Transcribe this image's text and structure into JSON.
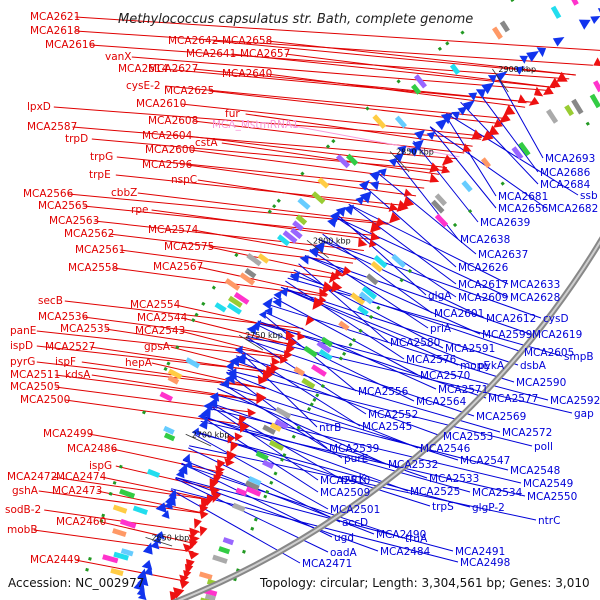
{
  "title": "Methylococcus capsulatus str. Bath, complete genome",
  "footer": {
    "accession": "Accession: NC_002977",
    "summary": "Topology: circular; Length: 3,304,561 bp; Genes: 3,010"
  },
  "colors": {
    "forward_label": "#e00000",
    "reverse_label": "#0000d8",
    "rna_label": "#f79ad9",
    "backbone": "#888888",
    "forward_arrow": "#ee1111",
    "reverse_arrow": "#1133ee"
  },
  "ticks": [
    {
      "label": "2900 kbp"
    },
    {
      "label": "2850 kbp"
    },
    {
      "label": "2800 kbp"
    },
    {
      "label": "2750 kbp"
    },
    {
      "label": "2700 kbp"
    },
    {
      "label": "2650 kbp"
    }
  ],
  "left_labels": [
    {
      "text": "MCA2621",
      "kind": "fwd"
    },
    {
      "text": "MCA2618",
      "kind": "fwd"
    },
    {
      "text": "MCA2616",
      "kind": "fwd"
    },
    {
      "text": "vanX",
      "kind": "fwd"
    },
    {
      "text": "MCA2614",
      "kind": "fwd"
    },
    {
      "text": "cysE-2",
      "kind": "fwd"
    },
    {
      "text": "MCA2642",
      "kind": "fwd"
    },
    {
      "text": "MCA2658",
      "kind": "fwd"
    },
    {
      "text": "MCA2641",
      "kind": "fwd"
    },
    {
      "text": "MCA2657",
      "kind": "fwd"
    },
    {
      "text": "MCA2627",
      "kind": "fwd"
    },
    {
      "text": "MCA2640",
      "kind": "fwd"
    },
    {
      "text": "MCA2625",
      "kind": "fwd"
    },
    {
      "text": "MCA2610",
      "kind": "fwd"
    },
    {
      "text": "fur",
      "kind": "fwd"
    },
    {
      "text": "lpxD",
      "kind": "fwd"
    },
    {
      "text": "MCA2608",
      "kind": "fwd"
    },
    {
      "text": "MCA_MstmRNA1",
      "kind": "rna"
    },
    {
      "text": "MCA2587",
      "kind": "fwd"
    },
    {
      "text": "MCA2604",
      "kind": "fwd"
    },
    {
      "text": "cstA",
      "kind": "fwd"
    },
    {
      "text": "trpD",
      "kind": "fwd"
    },
    {
      "text": "MCA2600",
      "kind": "fwd"
    },
    {
      "text": "trpG",
      "kind": "fwd"
    },
    {
      "text": "MCA2596",
      "kind": "fwd"
    },
    {
      "text": "trpE",
      "kind": "fwd"
    },
    {
      "text": "nspC",
      "kind": "fwd"
    },
    {
      "text": "cbbZ",
      "kind": "fwd"
    },
    {
      "text": "MCA2566",
      "kind": "fwd"
    },
    {
      "text": "MCA2565",
      "kind": "fwd"
    },
    {
      "text": "rpe",
      "kind": "fwd"
    },
    {
      "text": "MCA2563",
      "kind": "fwd"
    },
    {
      "text": "MCA2562",
      "kind": "fwd"
    },
    {
      "text": "MCA2574",
      "kind": "fwd"
    },
    {
      "text": "MCA2561",
      "kind": "fwd"
    },
    {
      "text": "MCA2575",
      "kind": "fwd"
    },
    {
      "text": "MCA2558",
      "kind": "fwd"
    },
    {
      "text": "MCA2567",
      "kind": "fwd"
    },
    {
      "text": "secB",
      "kind": "fwd"
    },
    {
      "text": "MCA2554",
      "kind": "fwd"
    },
    {
      "text": "MCA2536",
      "kind": "fwd"
    },
    {
      "text": "MCA2544",
      "kind": "fwd"
    },
    {
      "text": "MCA2535",
      "kind": "fwd"
    },
    {
      "text": "MCA2543",
      "kind": "fwd"
    },
    {
      "text": "panE",
      "kind": "fwd"
    },
    {
      "text": "gpsA",
      "kind": "fwd"
    },
    {
      "text": "ispD",
      "kind": "fwd"
    },
    {
      "text": "MCA2527",
      "kind": "fwd"
    },
    {
      "text": "hepA",
      "kind": "fwd"
    },
    {
      "text": "pyrG",
      "kind": "fwd"
    },
    {
      "text": "ispF",
      "kind": "fwd"
    },
    {
      "text": "MCA2511",
      "kind": "fwd"
    },
    {
      "text": "kdsA",
      "kind": "fwd"
    },
    {
      "text": "MCA2505",
      "kind": "fwd"
    },
    {
      "text": "MCA2500",
      "kind": "fwd"
    },
    {
      "text": "MCA2499",
      "kind": "fwd"
    },
    {
      "text": "MCA2486",
      "kind": "fwd"
    },
    {
      "text": "ispG",
      "kind": "fwd"
    },
    {
      "text": "MCA2472",
      "kind": "fwd"
    },
    {
      "text": "MCA2474",
      "kind": "fwd"
    },
    {
      "text": "gshA",
      "kind": "fwd"
    },
    {
      "text": "MCA2473",
      "kind": "fwd"
    },
    {
      "text": "sodB-2",
      "kind": "fwd"
    },
    {
      "text": "MCA2460",
      "kind": "fwd"
    },
    {
      "text": "mobB",
      "kind": "fwd"
    },
    {
      "text": "MCA2449",
      "kind": "fwd"
    }
  ],
  "right_labels": [
    {
      "text": "MCA2693",
      "kind": "rev"
    },
    {
      "text": "MCA2686",
      "kind": "rev"
    },
    {
      "text": "MCA2684",
      "kind": "rev"
    },
    {
      "text": "MCA2681",
      "kind": "rev"
    },
    {
      "text": "ssb",
      "kind": "rev"
    },
    {
      "text": "MCA2656",
      "kind": "rev"
    },
    {
      "text": "MCA2682",
      "kind": "rev"
    },
    {
      "text": "MCA2639",
      "kind": "rev"
    },
    {
      "text": "MCA2638",
      "kind": "rev"
    },
    {
      "text": "MCA2637",
      "kind": "rev"
    },
    {
      "text": "MCA2626",
      "kind": "rev"
    },
    {
      "text": "MCA2617",
      "kind": "rev"
    },
    {
      "text": "MCA2633",
      "kind": "rev"
    },
    {
      "text": "glgA",
      "kind": "rev"
    },
    {
      "text": "MCA2609",
      "kind": "rev"
    },
    {
      "text": "MCA2628",
      "kind": "rev"
    },
    {
      "text": "MCA2601",
      "kind": "rev"
    },
    {
      "text": "MCA2612",
      "kind": "rev"
    },
    {
      "text": "cysD",
      "kind": "rev"
    },
    {
      "text": "priA",
      "kind": "rev"
    },
    {
      "text": "MCA2599",
      "kind": "rev"
    },
    {
      "text": "MCA2619",
      "kind": "rev"
    },
    {
      "text": "MCA2580",
      "kind": "rev"
    },
    {
      "text": "MCA2591",
      "kind": "rev"
    },
    {
      "text": "MCA2605",
      "kind": "rev"
    },
    {
      "text": "smpB",
      "kind": "rev"
    },
    {
      "text": "MCA2576",
      "kind": "rev"
    },
    {
      "text": "mopE",
      "kind": "rev"
    },
    {
      "text": "pykA",
      "kind": "rev"
    },
    {
      "text": "dsbA",
      "kind": "rev"
    },
    {
      "text": "MCA2570",
      "kind": "rev"
    },
    {
      "text": "MCA2590",
      "kind": "rev"
    },
    {
      "text": "MCA2556",
      "kind": "rev"
    },
    {
      "text": "MCA2571",
      "kind": "rev"
    },
    {
      "text": "MCA2564",
      "kind": "rev"
    },
    {
      "text": "MCA2577",
      "kind": "rev"
    },
    {
      "text": "MCA2592",
      "kind": "rev"
    },
    {
      "text": "MCA2552",
      "kind": "rev"
    },
    {
      "text": "MCA2569",
      "kind": "rev"
    },
    {
      "text": "gap",
      "kind": "rev"
    },
    {
      "text": "ntrB",
      "kind": "rev"
    },
    {
      "text": "MCA2545",
      "kind": "rev"
    },
    {
      "text": "MCA2553",
      "kind": "rev"
    },
    {
      "text": "MCA2572",
      "kind": "rev"
    },
    {
      "text": "MCA2539",
      "kind": "rev"
    },
    {
      "text": "MCA2546",
      "kind": "rev"
    },
    {
      "text": "poll",
      "kind": "rev"
    },
    {
      "text": "purE",
      "kind": "rev"
    },
    {
      "text": "MCA2532",
      "kind": "rev"
    },
    {
      "text": "MCA2547",
      "kind": "rev"
    },
    {
      "text": "purK",
      "kind": "rev"
    },
    {
      "text": "MCA2533",
      "kind": "rev"
    },
    {
      "text": "MCA2548",
      "kind": "rev"
    },
    {
      "text": "MCA2510",
      "kind": "rev"
    },
    {
      "text": "MCA2509",
      "kind": "rev"
    },
    {
      "text": "MCA2525",
      "kind": "rev"
    },
    {
      "text": "MCA2534",
      "kind": "rev"
    },
    {
      "text": "MCA2549",
      "kind": "rev"
    },
    {
      "text": "trpS",
      "kind": "rev"
    },
    {
      "text": "MCA2550",
      "kind": "rev"
    },
    {
      "text": "MCA2501",
      "kind": "rev"
    },
    {
      "text": "glgP-2",
      "kind": "rev"
    },
    {
      "text": "accD",
      "kind": "rev"
    },
    {
      "text": "ntrC",
      "kind": "rev"
    },
    {
      "text": "ugd",
      "kind": "rev"
    },
    {
      "text": "MCA2490",
      "kind": "rev"
    },
    {
      "text": "truA",
      "kind": "rev"
    },
    {
      "text": "oadA",
      "kind": "rev"
    },
    {
      "text": "MCA2484",
      "kind": "rev"
    },
    {
      "text": "MCA2491",
      "kind": "rev"
    },
    {
      "text": "MCA2471",
      "kind": "rev"
    },
    {
      "text": "MCA2498",
      "kind": "rev"
    }
  ]
}
